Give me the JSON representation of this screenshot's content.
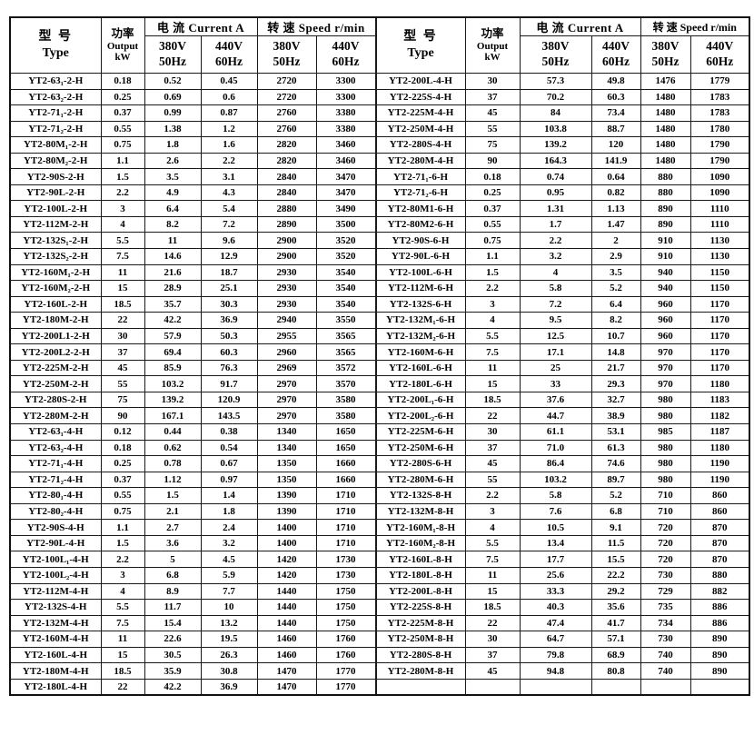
{
  "header": {
    "type_zh": "型  号",
    "type_en": "Type",
    "power_zh": "功率",
    "power_en": "Output",
    "power_unit": "kW",
    "current_label": "电  流 Current A",
    "speed_label": "转 速 Speed r/min",
    "v380": "380V",
    "hz50": "50Hz",
    "v440": "440V",
    "hz60": "60Hz"
  },
  "left_table": {
    "rows": [
      [
        "YT2-63₁-2-H",
        "0.18",
        "0.52",
        "0.45",
        "2720",
        "3300"
      ],
      [
        "YT2-63₂-2-H",
        "0.25",
        "0.69",
        "0.6",
        "2720",
        "3300"
      ],
      [
        "YT2-71₁-2-H",
        "0.37",
        "0.99",
        "0.87",
        "2760",
        "3380"
      ],
      [
        "YT2-71₂-2-H",
        "0.55",
        "1.38",
        "1.2",
        "2760",
        "3380"
      ],
      [
        "YT2-80M₁-2-H",
        "0.75",
        "1.8",
        "1.6",
        "2820",
        "3460"
      ],
      [
        "YT2-80M₂-2-H",
        "1.1",
        "2.6",
        "2.2",
        "2820",
        "3460"
      ],
      [
        "YT2-90S-2-H",
        "1.5",
        "3.5",
        "3.1",
        "2840",
        "3470"
      ],
      [
        "YT2-90L-2-H",
        "2.2",
        "4.9",
        "4.3",
        "2840",
        "3470"
      ],
      [
        "YT2-100L-2-H",
        "3",
        "6.4",
        "5.4",
        "2880",
        "3490"
      ],
      [
        "YT2-112M-2-H",
        "4",
        "8.2",
        "7.2",
        "2890",
        "3500"
      ],
      [
        "YT2-132S₁-2-H",
        "5.5",
        "11",
        "9.6",
        "2900",
        "3520"
      ],
      [
        "YT2-132S₂-2-H",
        "7.5",
        "14.6",
        "12.9",
        "2900",
        "3520"
      ],
      [
        "YT2-160M₁-2-H",
        "11",
        "21.6",
        "18.7",
        "2930",
        "3540"
      ],
      [
        "YT2-160M₂-2-H",
        "15",
        "28.9",
        "25.1",
        "2930",
        "3540"
      ],
      [
        "YT2-160L-2-H",
        "18.5",
        "35.7",
        "30.3",
        "2930",
        "3540"
      ],
      [
        "YT2-180M-2-H",
        "22",
        "42.2",
        "36.9",
        "2940",
        "3550"
      ],
      [
        "YT2-200L1-2-H",
        "30",
        "57.9",
        "50.3",
        "2955",
        "3565"
      ],
      [
        "YT2-200L2-2-H",
        "37",
        "69.4",
        "60.3",
        "2960",
        "3565"
      ],
      [
        "YT2-225M-2-H",
        "45",
        "85.9",
        "76.3",
        "2969",
        "3572"
      ],
      [
        "YT2-250M-2-H",
        "55",
        "103.2",
        "91.7",
        "2970",
        "3570"
      ],
      [
        "YT2-280S-2-H",
        "75",
        "139.2",
        "120.9",
        "2970",
        "3580"
      ],
      [
        "YT2-280M-2-H",
        "90",
        "167.1",
        "143.5",
        "2970",
        "3580"
      ],
      [
        "YT2-63₁-4-H",
        "0.12",
        "0.44",
        "0.38",
        "1340",
        "1650"
      ],
      [
        "YT2-63₂-4-H",
        "0.18",
        "0.62",
        "0.54",
        "1340",
        "1650"
      ],
      [
        "YT2-71₁-4-H",
        "0.25",
        "0.78",
        "0.67",
        "1350",
        "1660"
      ],
      [
        "YT2-71₂-4-H",
        "0.37",
        "1.12",
        "0.97",
        "1350",
        "1660"
      ],
      [
        "YT2-80₁-4-H",
        "0.55",
        "1.5",
        "1.4",
        "1390",
        "1710"
      ],
      [
        "YT2-80₂-4-H",
        "0.75",
        "2.1",
        "1.8",
        "1390",
        "1710"
      ],
      [
        "YT2-90S-4-H",
        "1.1",
        "2.7",
        "2.4",
        "1400",
        "1710"
      ],
      [
        "YT2-90L-4-H",
        "1.5",
        "3.6",
        "3.2",
        "1400",
        "1710"
      ],
      [
        "YT2-100L₁-4-H",
        "2.2",
        "5",
        "4.5",
        "1420",
        "1730"
      ],
      [
        "YT2-100L₂-4-H",
        "3",
        "6.8",
        "5.9",
        "1420",
        "1730"
      ],
      [
        "YT2-112M-4-H",
        "4",
        "8.9",
        "7.7",
        "1440",
        "1750"
      ],
      [
        "YT2-132S-4-H",
        "5.5",
        "11.7",
        "10",
        "1440",
        "1750"
      ],
      [
        "YT2-132M-4-H",
        "7.5",
        "15.4",
        "13.2",
        "1440",
        "1750"
      ],
      [
        "YT2-160M-4-H",
        "11",
        "22.6",
        "19.5",
        "1460",
        "1760"
      ],
      [
        "YT2-160L-4-H",
        "15",
        "30.5",
        "26.3",
        "1460",
        "1760"
      ],
      [
        "YT2-180M-4-H",
        "18.5",
        "35.9",
        "30.8",
        "1470",
        "1770"
      ],
      [
        "YT2-180L-4-H",
        "22",
        "42.2",
        "36.9",
        "1470",
        "1770"
      ]
    ]
  },
  "right_table": {
    "rows": [
      [
        "YT2-200L-4-H",
        "30",
        "57.3",
        "49.8",
        "1476",
        "1779"
      ],
      [
        "YT2-225S-4-H",
        "37",
        "70.2",
        "60.3",
        "1480",
        "1783"
      ],
      [
        "YT2-225M-4-H",
        "45",
        "84",
        "73.4",
        "1480",
        "1783"
      ],
      [
        "YT2-250M-4-H",
        "55",
        "103.8",
        "88.7",
        "1480",
        "1780"
      ],
      [
        "YT2-280S-4-H",
        "75",
        "139.2",
        "120",
        "1480",
        "1790"
      ],
      [
        "YT2-280M-4-H",
        "90",
        "164.3",
        "141.9",
        "1480",
        "1790"
      ],
      [
        "YT2-71₁-6-H",
        "0.18",
        "0.74",
        "0.64",
        "880",
        "1090"
      ],
      [
        "YT2-71₂-6-H",
        "0.25",
        "0.95",
        "0.82",
        "880",
        "1090"
      ],
      [
        "YT2-80M1-6-H",
        "0.37",
        "1.31",
        "1.13",
        "890",
        "1110"
      ],
      [
        "YT2-80M2-6-H",
        "0.55",
        "1.7",
        "1.47",
        "890",
        "1110"
      ],
      [
        "YT2-90S-6-H",
        "0.75",
        "2.2",
        "2",
        "910",
        "1130"
      ],
      [
        "YT2-90L-6-H",
        "1.1",
        "3.2",
        "2.9",
        "910",
        "1130"
      ],
      [
        "YT2-100L-6-H",
        "1.5",
        "4",
        "3.5",
        "940",
        "1150"
      ],
      [
        "YT2-112M-6-H",
        "2.2",
        "5.8",
        "5.2",
        "940",
        "1150"
      ],
      [
        "YT2-132S-6-H",
        "3",
        "7.2",
        "6.4",
        "960",
        "1170"
      ],
      [
        "YT2-132M₁-6-H",
        "4",
        "9.5",
        "8.2",
        "960",
        "1170"
      ],
      [
        "YT2-132M₂-6-H",
        "5.5",
        "12.5",
        "10.7",
        "960",
        "1170"
      ],
      [
        "YT2-160M-6-H",
        "7.5",
        "17.1",
        "14.8",
        "970",
        "1170"
      ],
      [
        "YT2-160L-6-H",
        "11",
        "25",
        "21.7",
        "970",
        "1170"
      ],
      [
        "YT2-180L-6-H",
        "15",
        "33",
        "29.3",
        "970",
        "1180"
      ],
      [
        "YT2-200L₁-6-H",
        "18.5",
        "37.6",
        "32.7",
        "980",
        "1183"
      ],
      [
        "YT2-200L₂-6-H",
        "22",
        "44.7",
        "38.9",
        "980",
        "1182"
      ],
      [
        "YT2-225M-6-H",
        "30",
        "61.1",
        "53.1",
        "985",
        "1187"
      ],
      [
        "YT2-250M-6-H",
        "37",
        "71.0",
        "61.3",
        "980",
        "1180"
      ],
      [
        "YT2-280S-6-H",
        "45",
        "86.4",
        "74.6",
        "980",
        "1190"
      ],
      [
        "YT2-280M-6-H",
        "55",
        "103.2",
        "89.7",
        "980",
        "1190"
      ],
      [
        "YT2-132S-8-H",
        "2.2",
        "5.8",
        "5.2",
        "710",
        "860"
      ],
      [
        "YT2-132M-8-H",
        "3",
        "7.6",
        "6.8",
        "710",
        "860"
      ],
      [
        "YT2-160M₁-8-H",
        "4",
        "10.5",
        "9.1",
        "720",
        "870"
      ],
      [
        "YT2-160M₂-8-H",
        "5.5",
        "13.4",
        "11.5",
        "720",
        "870"
      ],
      [
        "YT2-160L-8-H",
        "7.5",
        "17.7",
        "15.5",
        "720",
        "870"
      ],
      [
        "YT2-180L-8-H",
        "11",
        "25.6",
        "22.2",
        "730",
        "880"
      ],
      [
        "YT2-200L-8-H",
        "15",
        "33.3",
        "29.2",
        "729",
        "882"
      ],
      [
        "YT2-225S-8-H",
        "18.5",
        "40.3",
        "35.6",
        "735",
        "886"
      ],
      [
        "YT2-225M-8-H",
        "22",
        "47.4",
        "41.7",
        "734",
        "886"
      ],
      [
        "YT2-250M-8-H",
        "30",
        "64.7",
        "57.1",
        "730",
        "890"
      ],
      [
        "YT2-280S-8-H",
        "37",
        "79.8",
        "68.9",
        "740",
        "890"
      ],
      [
        "YT2-280M-8-H",
        "45",
        "94.8",
        "80.8",
        "740",
        "890"
      ],
      [
        "",
        "",
        "",
        "",
        "",
        ""
      ]
    ]
  }
}
